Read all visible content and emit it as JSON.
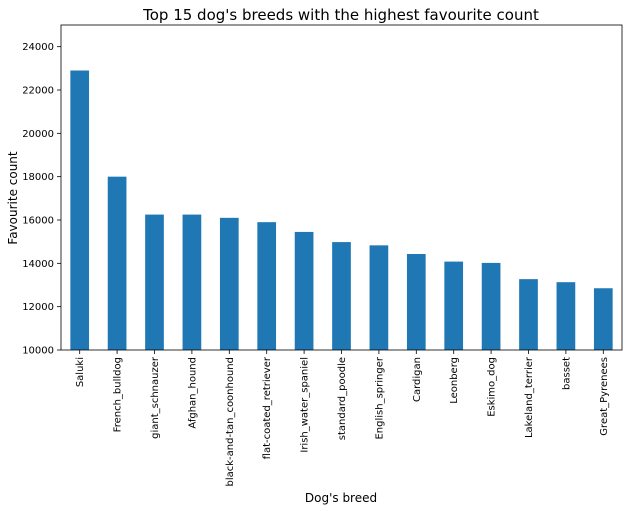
{
  "chart_data": {
    "type": "bar",
    "title": "Top 15 dog's breeds with the highest favourite count",
    "xlabel": "Dog's breed",
    "ylabel": "Favourite count",
    "categories": [
      "Saluki",
      "French_bulldog",
      "giant_schnauzer",
      "Afghan_hound",
      "black-and-tan_coonhound",
      "flat-coated_retriever",
      "Irish_water_spaniel",
      "standard_poodle",
      "English_springer",
      "Cardigan",
      "Leonberg",
      "Eskimo_dog",
      "Lakeland_terrier",
      "basset",
      "Great_Pyrenees"
    ],
    "values": [
      22900,
      18000,
      16250,
      16250,
      16100,
      15900,
      15450,
      14980,
      14830,
      14430,
      14080,
      14020,
      13270,
      13130,
      12850
    ],
    "ylim": [
      10000,
      25000
    ],
    "yticks": [
      10000,
      12000,
      14000,
      16000,
      18000,
      20000,
      22000,
      24000
    ],
    "grid": false,
    "bar_color": "#1f77b4"
  }
}
